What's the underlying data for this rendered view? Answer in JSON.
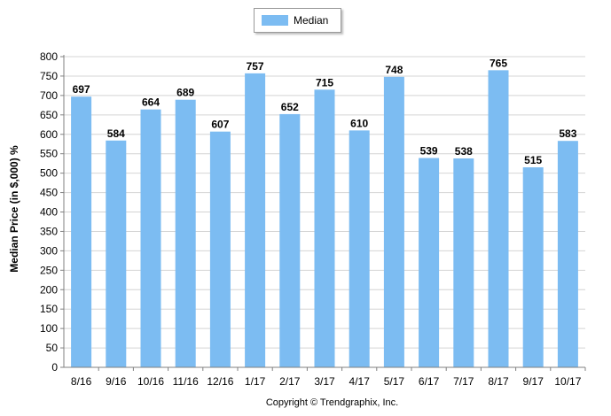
{
  "chart_data": {
    "type": "bar",
    "categories": [
      "8/16",
      "9/16",
      "10/16",
      "11/16",
      "12/16",
      "1/17",
      "2/17",
      "3/17",
      "4/17",
      "5/17",
      "6/17",
      "7/17",
      "8/17",
      "9/17",
      "10/17"
    ],
    "series": [
      {
        "name": "Median",
        "values": [
          697,
          584,
          664,
          689,
          607,
          757,
          652,
          715,
          610,
          748,
          539,
          538,
          765,
          515,
          583
        ]
      }
    ],
    "ylabel": "Median Price (in $,000) %",
    "xlabel": "",
    "ylim": [
      0,
      800
    ],
    "yticks": [
      0,
      50,
      100,
      150,
      200,
      250,
      300,
      350,
      400,
      450,
      500,
      550,
      600,
      650,
      700,
      750,
      800
    ],
    "grid": true,
    "legend": "top-center",
    "bar_color": "#7cbcf2",
    "footer": "Copyright © Trendgraphix, Inc."
  }
}
